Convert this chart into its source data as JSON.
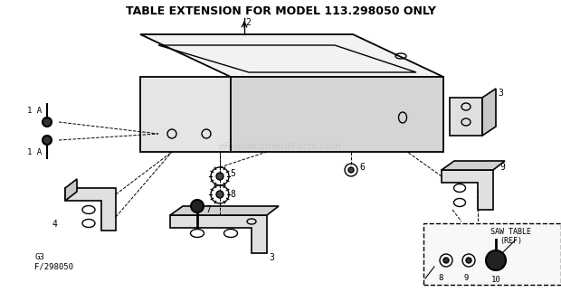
{
  "title": "TABLE EXTENSION FOR MODEL 113.298050 ONLY",
  "title_fontsize": 9,
  "subtitle_left": "G3\nF/298050",
  "saw_table_label": "SAW TABLE\n(REF)",
  "bg_color": "#ffffff",
  "line_color": "#000000",
  "watermark": "eReplacementParts.com"
}
